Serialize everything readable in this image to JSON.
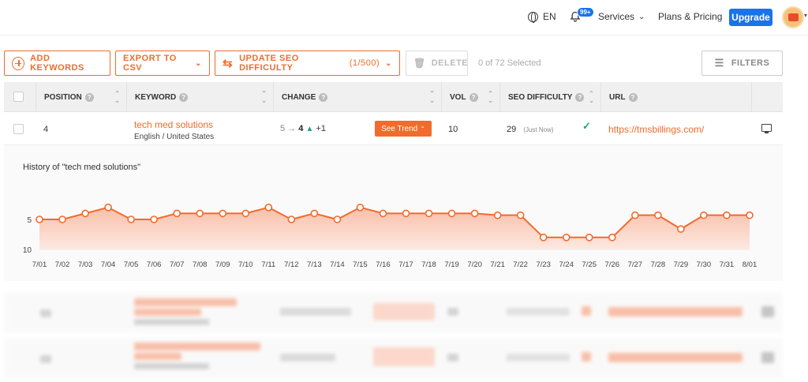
{
  "topbar": {
    "language": "EN",
    "notifications_badge": "99+",
    "services_label": "Services",
    "plans_label": "Plans & Pricing",
    "upgrade_label": "Upgrade"
  },
  "toolbar": {
    "add_keywords": "ADD KEYWORDS",
    "export_csv": "EXPORT TO CSV",
    "update_difficulty": "UPDATE SEO DIFFICULTY",
    "update_count": "(1/500)",
    "delete": "DELETE",
    "selected_text": "0 of 72 Selected",
    "filters": "FILTERS"
  },
  "table": {
    "headers": {
      "position": "POSITION",
      "keyword": "KEYWORD",
      "change": "CHANGE",
      "vol": "VOL",
      "seo_difficulty": "SEO DIFFICULTY",
      "url": "URL"
    },
    "row": {
      "position": "4",
      "keyword": "tech med solutions",
      "locale": "English / United States",
      "change_from": "5",
      "change_to": "4",
      "change_delta": "+1",
      "see_trend": "See Trend",
      "vol": "10",
      "difficulty": "29",
      "difficulty_note": "(Just Now)",
      "url": "https://tmsbillings.com/"
    }
  },
  "history": {
    "title": "History of \"tech med solutions\""
  },
  "colors": {
    "accent": "#f26b2c",
    "primary": "#1a73e8",
    "success": "#1aa38a"
  },
  "chart_data": {
    "type": "area",
    "categories": [
      "7/01",
      "7/02",
      "7/03",
      "7/04",
      "7/05",
      "7/06",
      "7/07",
      "7/08",
      "7/09",
      "7/10",
      "7/11",
      "7/12",
      "7/13",
      "7/14",
      "7/15",
      "7/16",
      "7/17",
      "7/18",
      "7/19",
      "7/20",
      "7/21",
      "7/22",
      "7/23",
      "7/24",
      "7/25",
      "7/26",
      "7/27",
      "7/28",
      "7/29",
      "7/30",
      "7/31",
      "8/01"
    ],
    "values": [
      5,
      5,
      4,
      3,
      5,
      5,
      4,
      4,
      4,
      4,
      3,
      5,
      4,
      5,
      3,
      4,
      4,
      4,
      4,
      4,
      4.3,
      4.3,
      8,
      8,
      8,
      8,
      4.3,
      4.3,
      6.6,
      4.3,
      4.3,
      4.3
    ],
    "y_ticks": [
      "5",
      "10"
    ],
    "ylim": [
      1,
      10
    ],
    "y_inverted": true
  }
}
